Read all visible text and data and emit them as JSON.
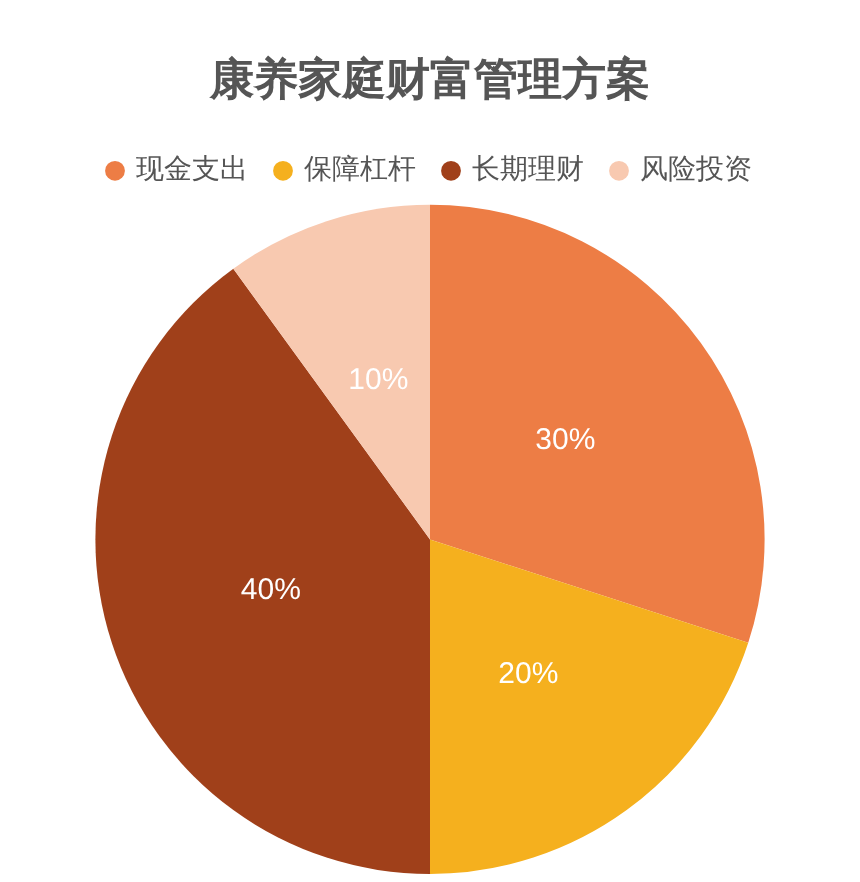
{
  "chart_data": {
    "type": "pie",
    "title": "康养家庭财富管理方案",
    "categories": [
      "现金支出",
      "保障杠杆",
      "长期理财",
      "风险投资"
    ],
    "values": [
      30,
      20,
      40,
      10
    ],
    "colors": [
      "#ed7d45",
      "#f5b01e",
      "#a0401a",
      "#f8c9b0"
    ],
    "value_labels": [
      "30%",
      "20%",
      "40%",
      "10%"
    ],
    "legend": "top"
  }
}
